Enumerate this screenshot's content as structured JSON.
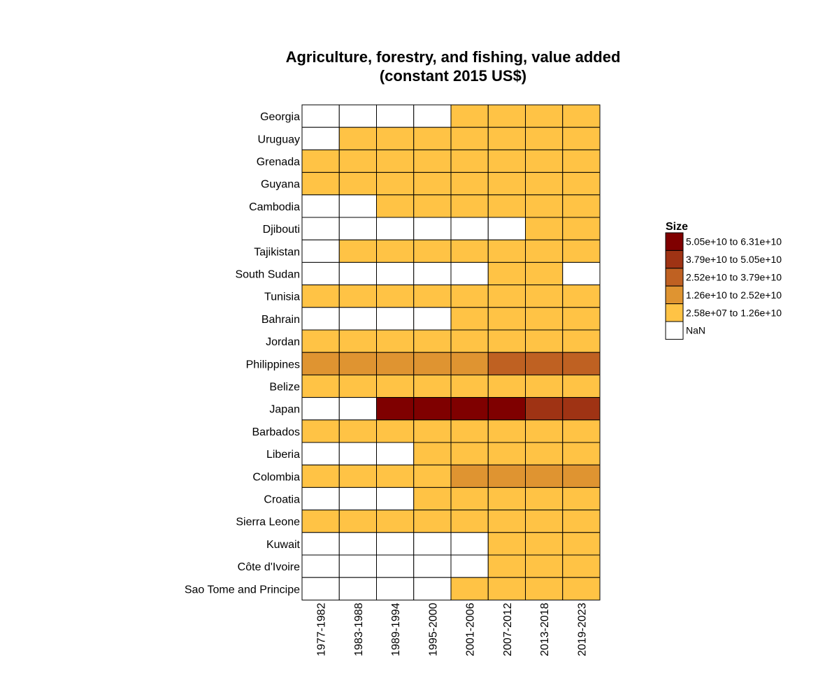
{
  "chart_data": {
    "type": "heatmap",
    "title_lines": [
      "Agriculture, forestry, and fishing, value added",
      "(constant 2015 US$)"
    ],
    "xlabel": "",
    "ylabel": "",
    "columns": [
      "1977-1982",
      "1983-1988",
      "1989-1994",
      "1995-2000",
      "2001-2006",
      "2007-2012",
      "2013-2018",
      "2019-2023"
    ],
    "rows": [
      "Georgia",
      "Uruguay",
      "Grenada",
      "Guyana",
      "Cambodia",
      "Djibouti",
      "Tajikistan",
      "South Sudan",
      "Tunisia",
      "Bahrain",
      "Jordan",
      "Philippines",
      "Belize",
      "Japan",
      "Barbados",
      "Liberia",
      "Colombia",
      "Croatia",
      "Sierra Leone",
      "Kuwait",
      "Côte d'Ivoire",
      "Sao Tome and Principe"
    ],
    "cells": [
      [
        -1,
        -1,
        -1,
        -1,
        0,
        0,
        0,
        0
      ],
      [
        -1,
        0,
        0,
        0,
        0,
        0,
        0,
        0
      ],
      [
        0,
        0,
        0,
        0,
        0,
        0,
        0,
        0
      ],
      [
        0,
        0,
        0,
        0,
        0,
        0,
        0,
        0
      ],
      [
        -1,
        -1,
        0,
        0,
        0,
        0,
        0,
        0
      ],
      [
        -1,
        -1,
        -1,
        -1,
        -1,
        -1,
        0,
        0
      ],
      [
        -1,
        0,
        0,
        0,
        0,
        0,
        0,
        0
      ],
      [
        -1,
        -1,
        -1,
        -1,
        -1,
        0,
        0,
        -1
      ],
      [
        0,
        0,
        0,
        0,
        0,
        0,
        0,
        0
      ],
      [
        -1,
        -1,
        -1,
        -1,
        0,
        0,
        0,
        0
      ],
      [
        0,
        0,
        0,
        0,
        0,
        0,
        0,
        0
      ],
      [
        1,
        1,
        1,
        1,
        1,
        2,
        2,
        2
      ],
      [
        0,
        0,
        0,
        0,
        0,
        0,
        0,
        0
      ],
      [
        -1,
        -1,
        4,
        4,
        4,
        4,
        3,
        3
      ],
      [
        0,
        0,
        0,
        0,
        0,
        0,
        0,
        0
      ],
      [
        -1,
        -1,
        -1,
        0,
        0,
        0,
        0,
        0
      ],
      [
        0,
        0,
        0,
        0,
        1,
        1,
        1,
        1
      ],
      [
        -1,
        -1,
        -1,
        0,
        0,
        0,
        0,
        0
      ],
      [
        0,
        0,
        0,
        0,
        0,
        0,
        0,
        0
      ],
      [
        -1,
        -1,
        -1,
        -1,
        -1,
        0,
        0,
        0
      ],
      [
        -1,
        -1,
        -1,
        -1,
        -1,
        0,
        0,
        0
      ],
      [
        -1,
        -1,
        -1,
        -1,
        0,
        0,
        0,
        0
      ]
    ],
    "bins": [
      {
        "label": "2.58e+07 to 1.26e+10",
        "color": "#ffc345"
      },
      {
        "label": "1.26e+10 to 2.52e+10",
        "color": "#df9431"
      },
      {
        "label": "2.52e+10 to 3.79e+10",
        "color": "#bf6122"
      },
      {
        "label": "3.79e+10 to 5.05e+10",
        "color": "#9f3314"
      },
      {
        "label": "5.05e+10 to 6.31e+10",
        "color": "#7f0000"
      }
    ],
    "nan_label": "NaN",
    "nan_color": "#ffffff",
    "legend_title": "Size",
    "legend_placement": "right"
  }
}
